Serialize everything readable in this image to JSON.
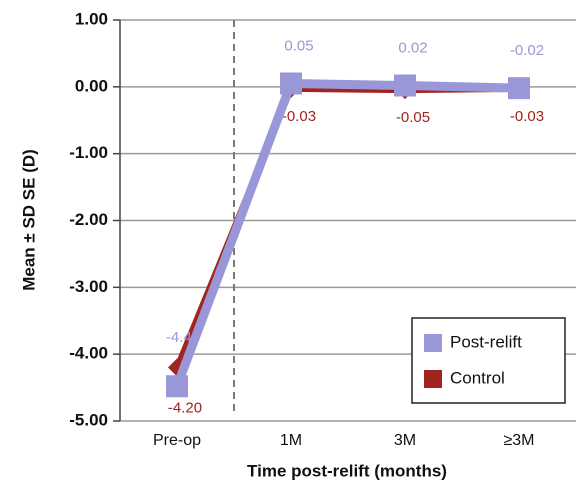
{
  "chart_data": {
    "type": "line",
    "y_label": "Mean ± SD SE (D)",
    "x_label": "Time post-relift (months)",
    "categories": [
      "Pre-op",
      "1M",
      "3M",
      "≥3M"
    ],
    "series": [
      {
        "name": "Post-relift",
        "color": "#9a97d8",
        "marker": "square",
        "values": [
          -4.48,
          0.05,
          0.02,
          -0.02
        ],
        "value_labels": [
          "-4.48",
          "0.05",
          "0.02",
          "-0.02"
        ]
      },
      {
        "name": "Control",
        "color": "#a3231f",
        "marker": "diamond",
        "values": [
          -4.2,
          -0.03,
          -0.05,
          -0.03
        ],
        "value_labels": [
          "-4.20",
          "-0.03",
          "-0.05",
          "-0.03"
        ]
      }
    ],
    "ylim": [
      -5,
      1
    ],
    "yticks": [
      {
        "value": 1,
        "label": "1.00"
      },
      {
        "value": 0,
        "label": "0.00"
      },
      {
        "value": -1,
        "label": "-1.00"
      },
      {
        "value": -2,
        "label": "-2.00"
      },
      {
        "value": -3,
        "label": "-3.00"
      },
      {
        "value": -4,
        "label": "-4.00"
      },
      {
        "value": -5,
        "label": "-5.00"
      }
    ],
    "grid": true,
    "legend": "lower right"
  }
}
